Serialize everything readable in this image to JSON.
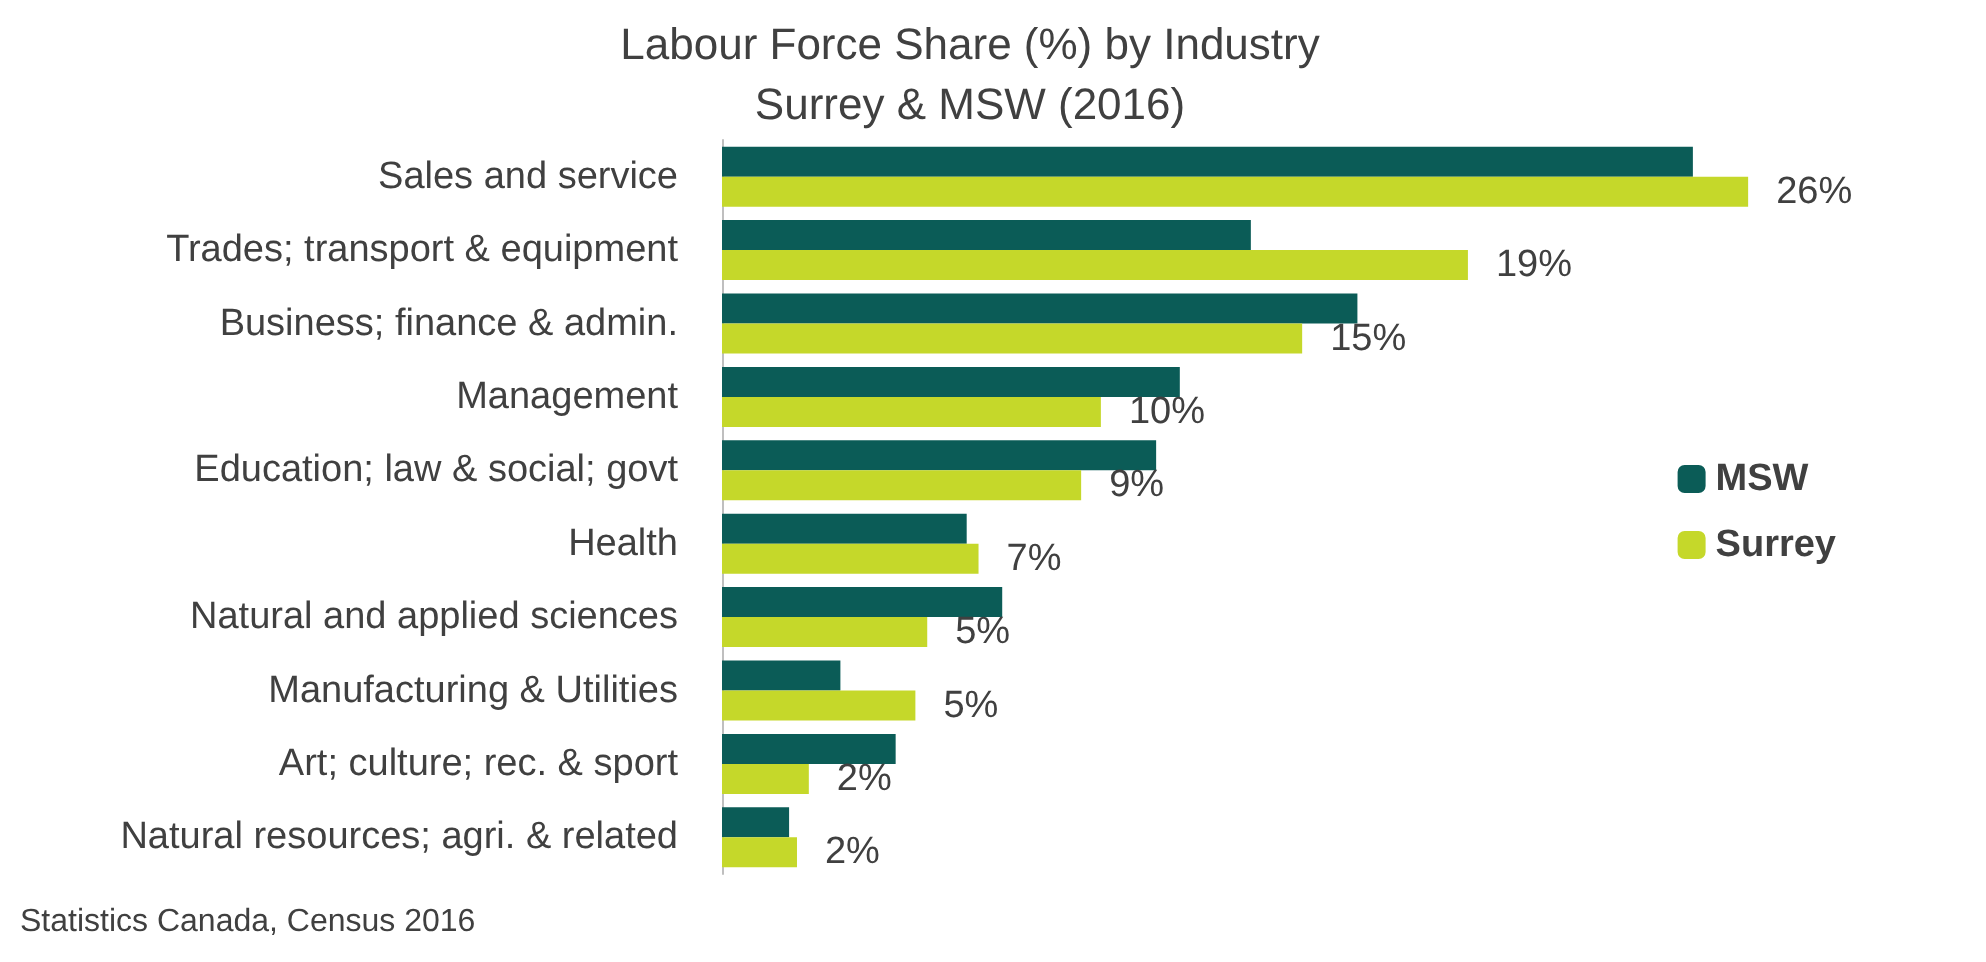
{
  "chart_data": {
    "type": "bar",
    "orientation": "horizontal",
    "title": "Labour Force Share (%) by Industry\nSurrey & MSW (2016)",
    "categories": [
      "Sales and service",
      "Trades; transport & equipment",
      "Business; finance & admin.",
      "Management",
      "Education; law & social; govt",
      "Health",
      "Natural and applied sciences",
      "Manufacturing & Utilities",
      "Art; culture; rec. & sport",
      "Natural resources; agri. & related"
    ],
    "series": [
      {
        "name": "MSW",
        "color": "#0b5c57",
        "values": [
          24.6,
          13.4,
          16.1,
          11.6,
          11.0,
          6.2,
          7.1,
          3.0,
          4.4,
          1.7
        ]
      },
      {
        "name": "Surrey",
        "color": "#c5d82a",
        "values": [
          26,
          18.9,
          14.7,
          9.6,
          9.1,
          6.5,
          5.2,
          4.9,
          2.2,
          1.9
        ],
        "value_labels": [
          "26%",
          "19%",
          "15%",
          "10%",
          "9%",
          "7%",
          "5%",
          "5%",
          "2%",
          "2%"
        ]
      }
    ],
    "legend": "right",
    "annotations": [
      "Statistics Canada, Census 2016"
    ]
  }
}
